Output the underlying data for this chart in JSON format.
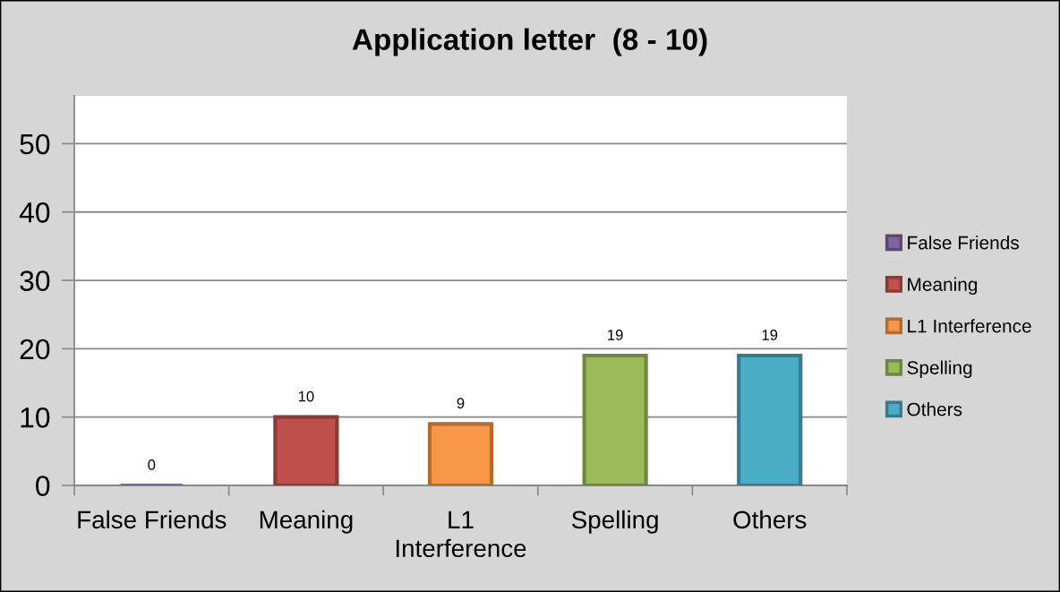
{
  "chart_data": {
    "type": "bar",
    "title": "Application letter  (8 - 10)",
    "categories": [
      "False Friends",
      "Meaning",
      "L1 Interference",
      "Spelling",
      "Others"
    ],
    "series": [
      {
        "name": "False Friends",
        "color": "#8064a2",
        "values": [
          0,
          null,
          null,
          null,
          null
        ]
      },
      {
        "name": "Meaning",
        "color": "#c0504d",
        "values": [
          null,
          10,
          null,
          null,
          null
        ]
      },
      {
        "name": "L1 Interference",
        "color": "#f79646",
        "values": [
          null,
          null,
          9,
          null,
          null
        ]
      },
      {
        "name": "Spelling",
        "color": "#9bbb59",
        "values": [
          null,
          null,
          null,
          19,
          null
        ]
      },
      {
        "name": "Others",
        "color": "#4bacc6",
        "values": [
          null,
          null,
          null,
          null,
          19
        ]
      }
    ],
    "stacked": true,
    "ylim": [
      0,
      57
    ],
    "yticks": [
      0,
      10,
      20,
      30,
      40,
      50
    ],
    "grid": "y",
    "legend": "right",
    "data_labels": true
  }
}
